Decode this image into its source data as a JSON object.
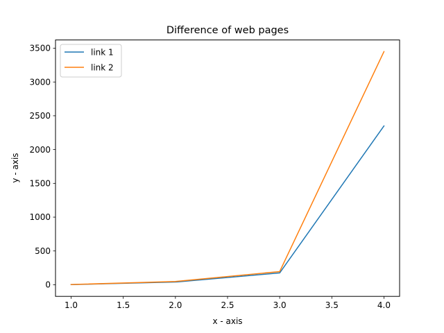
{
  "chart_data": {
    "type": "line",
    "title": "Difference of web pages",
    "xlabel": "x - axis",
    "ylabel": "y - axis",
    "x": [
      1,
      2,
      3,
      4
    ],
    "series": [
      {
        "name": "link 1",
        "values": [
          2,
          40,
          175,
          2350
        ],
        "color": "#1f77b4"
      },
      {
        "name": "link 2",
        "values": [
          3,
          48,
          195,
          3450
        ],
        "color": "#ff7f0e"
      }
    ],
    "xlim": [
      0.85,
      4.15
    ],
    "ylim": [
      -172,
      3622
    ],
    "xticks": [
      1.0,
      1.5,
      2.0,
      2.5,
      3.0,
      3.5,
      4.0
    ],
    "xtick_labels": [
      "1.0",
      "1.5",
      "2.0",
      "2.5",
      "3.0",
      "3.5",
      "4.0"
    ],
    "yticks": [
      0,
      500,
      1000,
      1500,
      2000,
      2500,
      3000,
      3500
    ],
    "ytick_labels": [
      "0",
      "500",
      "1000",
      "1500",
      "2000",
      "2500",
      "3000",
      "3500"
    ],
    "legend_placement": "top-left",
    "grid": false
  }
}
